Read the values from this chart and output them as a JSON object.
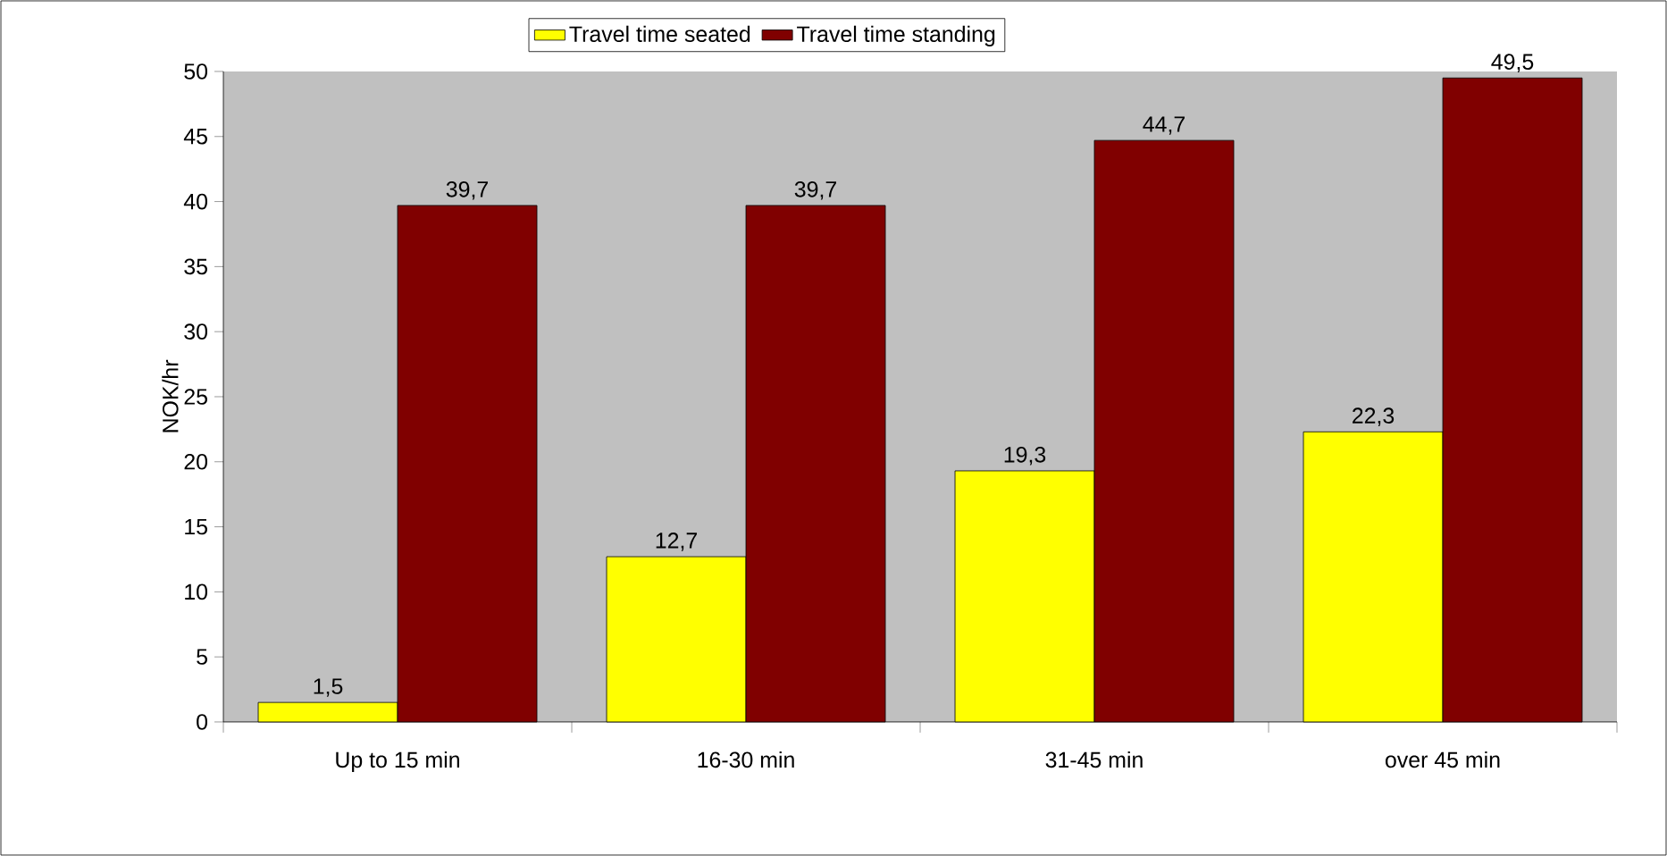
{
  "chart_data": {
    "type": "bar",
    "ylabel": "NOK/hr",
    "categories": [
      "Up to 15 min",
      "16-30 min",
      "31-45 min",
      "over 45 min"
    ],
    "series": [
      {
        "name": "Travel time seated",
        "color": "#ffff00",
        "values": [
          1.5,
          12.7,
          19.3,
          22.3
        ],
        "value_labels": [
          "1,5",
          "12,7",
          "19,3",
          "22,3"
        ]
      },
      {
        "name": "Travel time standing",
        "color": "#800000",
        "values": [
          39.7,
          39.7,
          44.7,
          49.5
        ],
        "value_labels": [
          "39,7",
          "39,7",
          "44,7",
          "49,5"
        ]
      }
    ],
    "ylim": [
      0,
      50
    ],
    "yticks": [
      0,
      5,
      10,
      15,
      20,
      25,
      30,
      35,
      40,
      45,
      50
    ],
    "grid": false,
    "legend": "top"
  }
}
